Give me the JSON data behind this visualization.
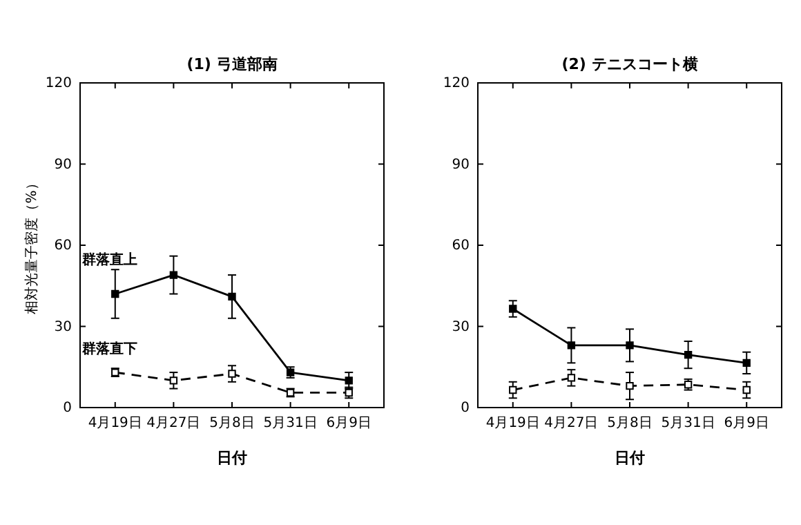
{
  "chart_data": [
    {
      "type": "line",
      "title": "(1) 弓道部南",
      "xlabel": "日付",
      "ylabel": "相対光量子密度（%）",
      "categories": [
        "4月19日",
        "4月27日",
        "5月8日",
        "5月31日",
        "6月9日"
      ],
      "ylim": [
        0,
        120
      ],
      "yticks": [
        0,
        30,
        60,
        90,
        120
      ],
      "grid": false,
      "series": [
        {
          "name": "群落直上",
          "color": "#000000",
          "marker": "square",
          "line_style": "solid",
          "values": [
            42,
            49,
            41,
            13,
            10
          ],
          "errors": [
            9,
            7,
            8,
            2,
            3
          ]
        },
        {
          "name": "群落直下",
          "color": "#000000",
          "marker": "square",
          "line_style": "dashed",
          "values": [
            13,
            10,
            12.5,
            5.5,
            5.5
          ],
          "errors": [
            1.5,
            3,
            3,
            1.5,
            2
          ]
        }
      ]
    },
    {
      "type": "line",
      "title": "(2) テニスコート横",
      "xlabel": "日付",
      "categories": [
        "4月19日",
        "4月27日",
        "5月8日",
        "5月31日",
        "6月9日"
      ],
      "ylim": [
        0,
        120
      ],
      "yticks": [
        0,
        30,
        60,
        90,
        120
      ],
      "grid": false,
      "series": [
        {
          "color": "#000000",
          "marker": "square",
          "line_style": "solid",
          "values": [
            36.5,
            23,
            23,
            19.5,
            16.5
          ],
          "errors": [
            3,
            6.5,
            6,
            5,
            4
          ]
        },
        {
          "color": "#000000",
          "marker": "square",
          "line_style": "dashed",
          "values": [
            6.5,
            11,
            8,
            8.5,
            6.5
          ],
          "errors": [
            3,
            3,
            5,
            2,
            3
          ]
        }
      ]
    }
  ]
}
